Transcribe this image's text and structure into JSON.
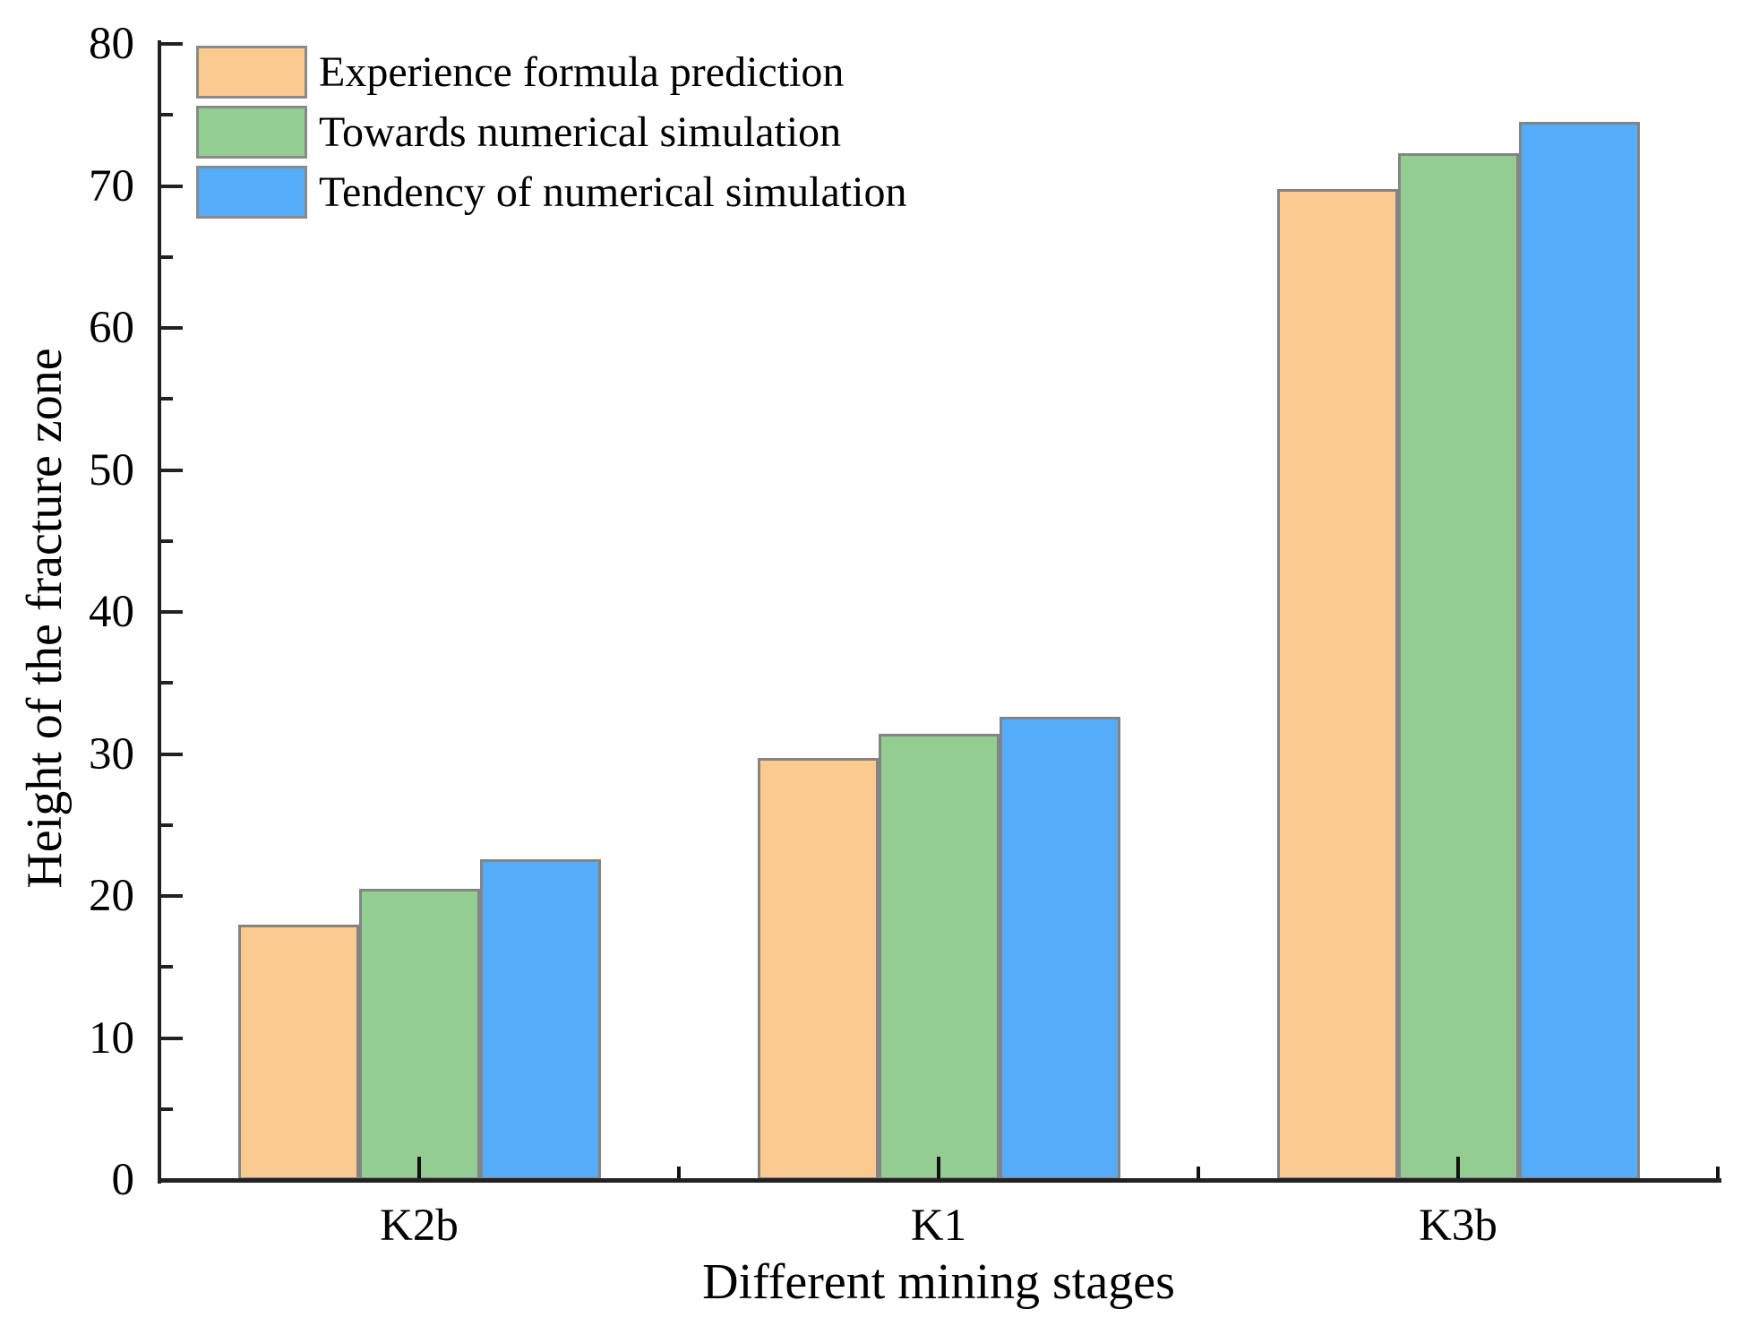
{
  "chart_data": {
    "type": "bar",
    "title": "",
    "xlabel": "Different mining stages",
    "ylabel": "Height of the fracture zone",
    "categories": [
      "K2b",
      "K1",
      "K3b"
    ],
    "series": [
      {
        "name": "Experience formula prediction",
        "color": "#FBCA8E",
        "values": [
          18.0,
          29.7,
          69.8
        ]
      },
      {
        "name": "Towards numerical simulation",
        "color": "#94CD92",
        "values": [
          20.5,
          31.4,
          72.3
        ]
      },
      {
        "name": "Tendency of numerical simulation",
        "color": "#55ACF9",
        "values": [
          22.6,
          32.6,
          74.5
        ]
      }
    ],
    "ylim": [
      0,
      80
    ],
    "yticks": [
      0,
      10,
      20,
      30,
      40,
      50,
      60,
      70,
      80
    ],
    "minor_ytick_step": 5,
    "grid": false,
    "legend_position": "upper-left",
    "colors": {
      "background": "#FFFFFF",
      "text": "#000000",
      "axis": "#222222",
      "bar_border": "#848484",
      "legend_swatch_border": "#8A8A8A"
    }
  }
}
